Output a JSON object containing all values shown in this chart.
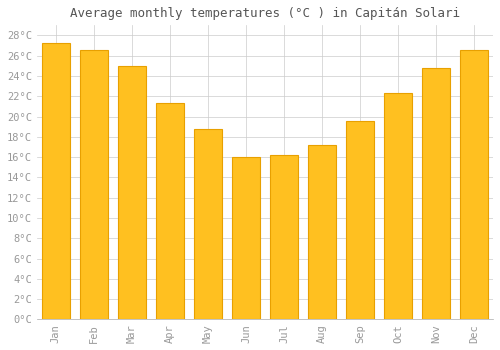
{
  "title": "Average monthly temperatures (°C ) in Capitán Solari",
  "months": [
    "Jan",
    "Feb",
    "Mar",
    "Apr",
    "May",
    "Jun",
    "Jul",
    "Aug",
    "Sep",
    "Oct",
    "Nov",
    "Dec"
  ],
  "values": [
    27.3,
    26.6,
    25.0,
    21.3,
    18.8,
    16.0,
    16.2,
    17.2,
    19.6,
    22.3,
    24.8,
    26.6
  ],
  "bar_color": "#FFC020",
  "bar_edge_color": "#E8A000",
  "background_color": "#FFFFFF",
  "plot_bg_color": "#FFFFFF",
  "grid_color": "#CCCCCC",
  "ylim": [
    0,
    29
  ],
  "yticks": [
    0,
    2,
    4,
    6,
    8,
    10,
    12,
    14,
    16,
    18,
    20,
    22,
    24,
    26,
    28
  ],
  "title_fontsize": 9,
  "tick_fontsize": 7.5,
  "font_family": "monospace",
  "tick_color": "#999999",
  "title_color": "#555555"
}
